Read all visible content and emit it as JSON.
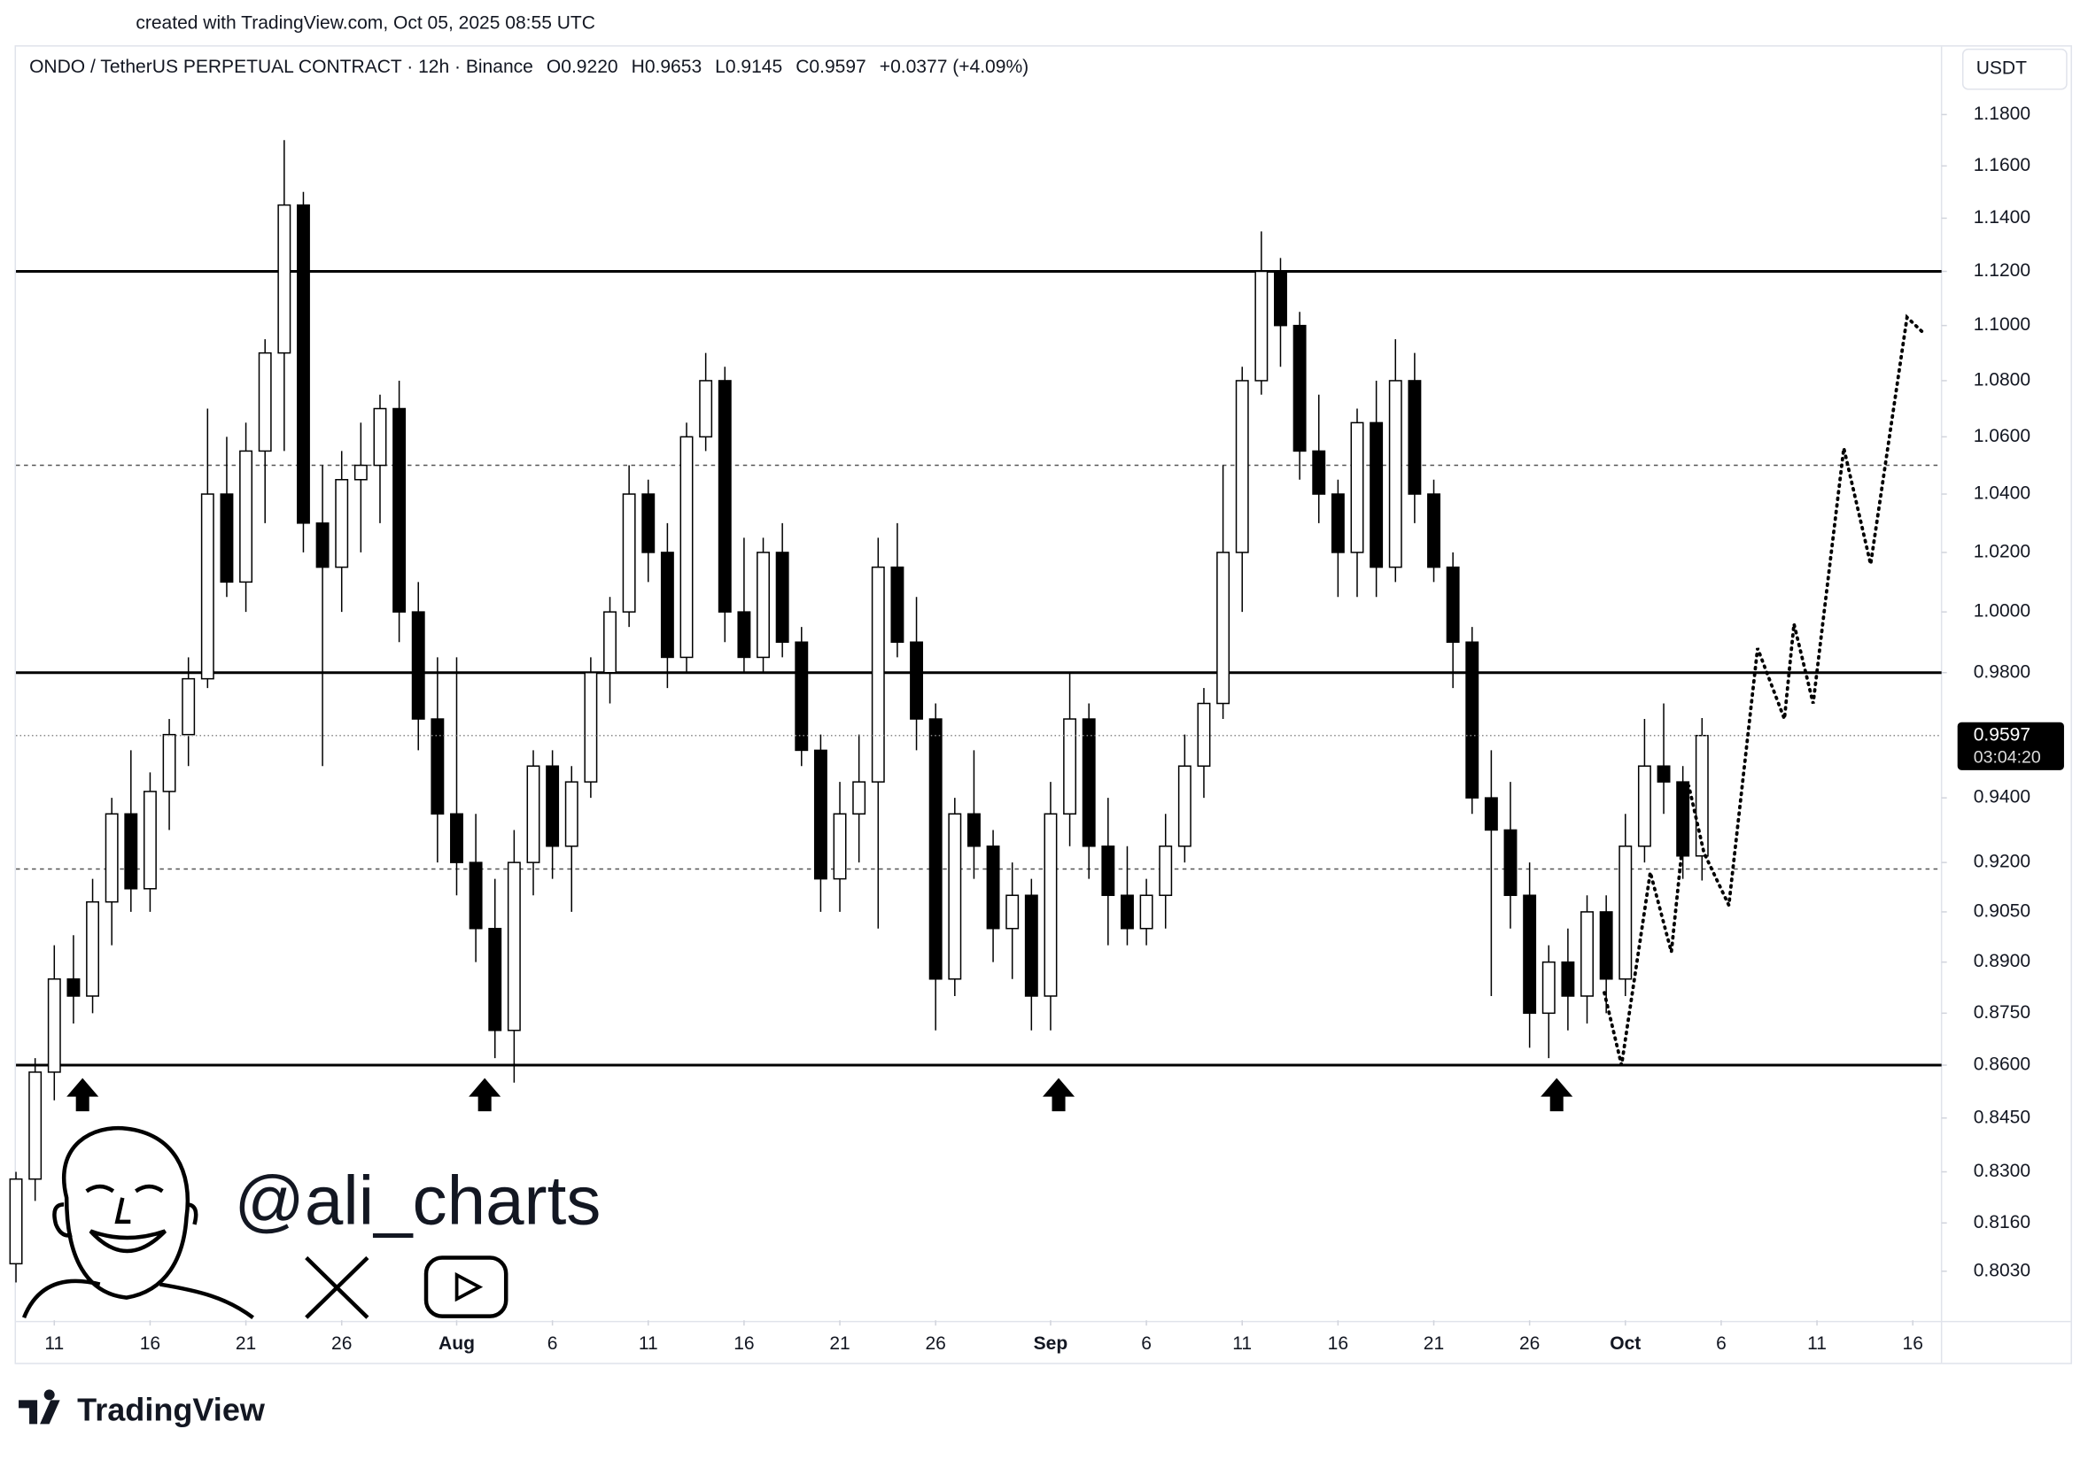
{
  "header": "created with TradingView.com, Oct 05, 2025 08:55 UTC",
  "chart_data": {
    "type": "candlestick",
    "title": "ONDO / TetherUS PERPETUAL CONTRACT · 12h · Binance",
    "ohlc_legend": [
      "O0.9220",
      "H0.9653",
      "L0.9145",
      "C0.9597"
    ],
    "change": "+0.0377 (+4.09%)",
    "currency": "USDT",
    "countdown": "03:04:20",
    "log_scale": true,
    "grid": false,
    "up_color": "#ffffff",
    "down_color": "#000000",
    "open": [
      0.805,
      0.828,
      0.858,
      0.885,
      0.88,
      0.908,
      0.935,
      0.912,
      0.942,
      0.96,
      0.978,
      1.04,
      1.01,
      1.055,
      1.09,
      1.145,
      1.03,
      1.015,
      1.045,
      1.05,
      1.07,
      1.0,
      0.965,
      0.935,
      0.92,
      0.9,
      0.87,
      0.92,
      0.95,
      0.925,
      0.945,
      0.98,
      1.0,
      1.04,
      1.02,
      0.985,
      1.06,
      1.08,
      1.0,
      0.985,
      1.02,
      0.99,
      0.955,
      0.915,
      0.935,
      0.945,
      1.015,
      0.99,
      0.965,
      0.885,
      0.935,
      0.925,
      0.9,
      0.91,
      0.88,
      0.935,
      0.965,
      0.925,
      0.91,
      0.9,
      0.91,
      0.925,
      0.95,
      0.97,
      1.02,
      1.08,
      1.12,
      1.1,
      1.055,
      1.04,
      1.02,
      1.065,
      1.015,
      1.08,
      1.04,
      1.015,
      0.99,
      0.94,
      0.93,
      0.91,
      0.875,
      0.89,
      0.88,
      0.905,
      0.885,
      0.925,
      0.95,
      0.945,
      0.922
    ],
    "high": [
      0.83,
      0.862,
      0.895,
      0.898,
      0.915,
      0.94,
      0.955,
      0.948,
      0.965,
      0.985,
      1.07,
      1.06,
      1.065,
      1.095,
      1.17,
      1.15,
      1.05,
      1.055,
      1.065,
      1.075,
      1.08,
      1.01,
      0.985,
      0.985,
      0.935,
      0.915,
      0.93,
      0.955,
      0.955,
      0.95,
      0.985,
      1.005,
      1.05,
      1.045,
      1.03,
      1.065,
      1.09,
      1.085,
      1.025,
      1.025,
      1.03,
      0.995,
      0.96,
      0.945,
      0.96,
      1.025,
      1.03,
      1.005,
      0.97,
      0.94,
      0.955,
      0.93,
      0.92,
      0.915,
      0.945,
      0.98,
      0.97,
      0.94,
      0.925,
      0.915,
      0.935,
      0.96,
      0.975,
      1.05,
      1.085,
      1.135,
      1.125,
      1.105,
      1.075,
      1.045,
      1.07,
      1.08,
      1.095,
      1.09,
      1.045,
      1.02,
      0.995,
      0.955,
      0.945,
      0.92,
      0.895,
      0.9,
      0.91,
      0.91,
      0.935,
      0.965,
      0.97,
      0.95,
      0.9653
    ],
    "low": [
      0.8,
      0.822,
      0.85,
      0.872,
      0.875,
      0.895,
      0.905,
      0.905,
      0.93,
      0.95,
      0.975,
      1.005,
      1.0,
      1.03,
      1.055,
      1.02,
      0.95,
      1.0,
      1.02,
      1.03,
      0.99,
      0.955,
      0.92,
      0.91,
      0.89,
      0.862,
      0.855,
      0.91,
      0.915,
      0.905,
      0.94,
      0.97,
      0.995,
      1.01,
      0.975,
      0.98,
      1.055,
      0.99,
      0.98,
      0.98,
      0.985,
      0.95,
      0.905,
      0.905,
      0.92,
      0.9,
      0.985,
      0.955,
      0.87,
      0.88,
      0.915,
      0.89,
      0.885,
      0.87,
      0.87,
      0.925,
      0.915,
      0.895,
      0.895,
      0.895,
      0.9,
      0.92,
      0.94,
      0.965,
      1.0,
      1.075,
      1.085,
      1.045,
      1.03,
      1.005,
      1.005,
      1.005,
      1.01,
      1.03,
      1.01,
      0.975,
      0.935,
      0.88,
      0.9,
      0.865,
      0.862,
      0.87,
      0.872,
      0.875,
      0.88,
      0.92,
      0.935,
      0.915,
      0.9145
    ],
    "close": [
      0.828,
      0.858,
      0.885,
      0.88,
      0.908,
      0.935,
      0.912,
      0.942,
      0.96,
      0.978,
      1.04,
      1.01,
      1.055,
      1.09,
      1.145,
      1.03,
      1.015,
      1.045,
      1.05,
      1.07,
      1.0,
      0.965,
      0.935,
      0.92,
      0.9,
      0.87,
      0.92,
      0.95,
      0.925,
      0.945,
      0.98,
      1.0,
      1.04,
      1.02,
      0.985,
      1.06,
      1.08,
      1.0,
      0.985,
      1.02,
      0.99,
      0.955,
      0.915,
      0.935,
      0.945,
      1.015,
      0.99,
      0.965,
      0.885,
      0.935,
      0.925,
      0.9,
      0.91,
      0.88,
      0.935,
      0.965,
      0.925,
      0.91,
      0.9,
      0.91,
      0.925,
      0.95,
      0.97,
      1.02,
      1.08,
      1.12,
      1.1,
      1.055,
      1.04,
      1.02,
      1.065,
      1.015,
      1.08,
      1.04,
      1.015,
      0.99,
      0.94,
      0.93,
      0.91,
      0.875,
      0.89,
      0.88,
      0.905,
      0.885,
      0.925,
      0.95,
      0.945,
      0.922,
      0.9597
    ],
    "hlines_solid": [
      1.12,
      0.98,
      0.86
    ],
    "hlines_dashed": [
      1.05,
      0.918
    ],
    "projection": {
      "x": [
        82.9,
        83.8,
        85.3,
        86.4,
        87.3,
        88.1,
        89.4,
        90.9,
        92.3,
        92.8,
        93.8,
        95.4,
        96.8,
        98.7,
        99.6
      ],
      "values": [
        0.881,
        0.86,
        0.917,
        0.893,
        0.944,
        0.923,
        0.907,
        0.988,
        0.965,
        0.996,
        0.97,
        1.056,
        1.016,
        1.103,
        1.097
      ]
    },
    "ylim": [
      0.79,
      1.207
    ],
    "yticks": [
      {
        "value": 1.18,
        "label": "1.1800"
      },
      {
        "value": 1.16,
        "label": "1.1600"
      },
      {
        "value": 1.14,
        "label": "1.1400"
      },
      {
        "value": 1.12,
        "label": "1.1200"
      },
      {
        "value": 1.1,
        "label": "1.1000"
      },
      {
        "value": 1.08,
        "label": "1.0800"
      },
      {
        "value": 1.06,
        "label": "1.0600"
      },
      {
        "value": 1.04,
        "label": "1.0400"
      },
      {
        "value": 1.02,
        "label": "1.0200"
      },
      {
        "value": 1.0,
        "label": "1.0000"
      },
      {
        "value": 0.98,
        "label": "0.9800"
      },
      {
        "value": 0.94,
        "label": "0.9400"
      },
      {
        "value": 0.92,
        "label": "0.9200"
      },
      {
        "value": 0.905,
        "label": "0.9050"
      },
      {
        "value": 0.89,
        "label": "0.8900"
      },
      {
        "value": 0.875,
        "label": "0.8750"
      },
      {
        "value": 0.86,
        "label": "0.8600"
      },
      {
        "value": 0.845,
        "label": "0.8450"
      },
      {
        "value": 0.83,
        "label": "0.8300"
      },
      {
        "value": 0.816,
        "label": "0.8160"
      },
      {
        "value": 0.803,
        "label": "0.8030"
      }
    ],
    "xlim": [
      0,
      100.5
    ],
    "xticks": [
      {
        "value": 2,
        "label": "11"
      },
      {
        "value": 7,
        "label": "16"
      },
      {
        "value": 12,
        "label": "21"
      },
      {
        "value": 17,
        "label": "26"
      },
      {
        "value": 23,
        "label": "Aug"
      },
      {
        "value": 28,
        "label": "6"
      },
      {
        "value": 33,
        "label": "11"
      },
      {
        "value": 38,
        "label": "16"
      },
      {
        "value": 43,
        "label": "21"
      },
      {
        "value": 48,
        "label": "26"
      },
      {
        "value": 54,
        "label": "Sep"
      },
      {
        "value": 59,
        "label": "6"
      },
      {
        "value": 64,
        "label": "11"
      },
      {
        "value": 69,
        "label": "16"
      },
      {
        "value": 74,
        "label": "21"
      },
      {
        "value": 79,
        "label": "26"
      },
      {
        "value": 84,
        "label": "Oct"
      },
      {
        "value": 89,
        "label": "6"
      },
      {
        "value": 94,
        "label": "11"
      },
      {
        "value": 99,
        "label": "16"
      }
    ]
  },
  "watermark": "@ali_charts",
  "brand": "TradingView"
}
